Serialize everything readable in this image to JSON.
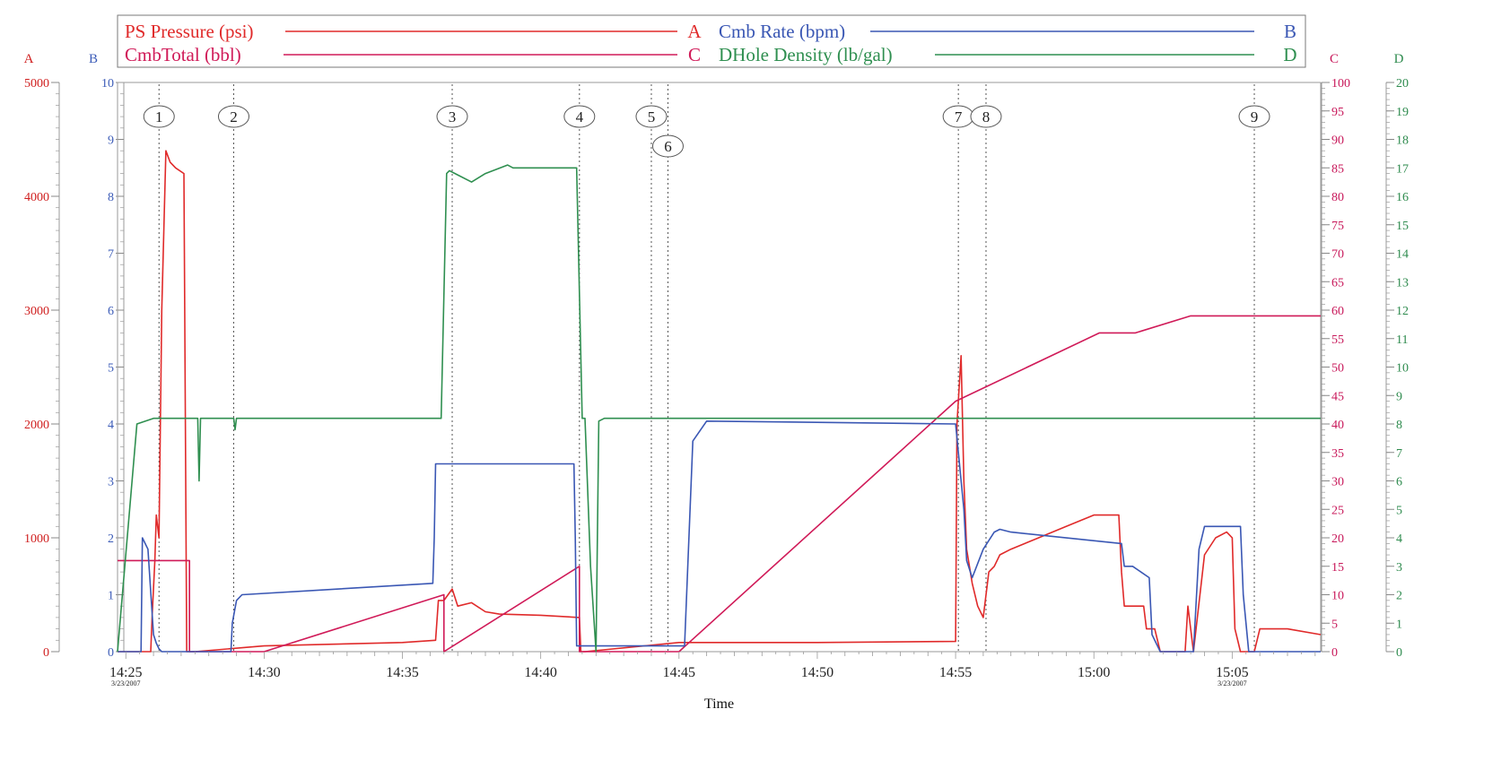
{
  "chart_data": {
    "type": "line",
    "xlabel": "Time",
    "x_ticks": [
      {
        "t": 0,
        "label": "14:25",
        "date": "3/23/2007"
      },
      {
        "t": 5,
        "label": "14:30"
      },
      {
        "t": 10,
        "label": "14:35"
      },
      {
        "t": 15,
        "label": "14:40"
      },
      {
        "t": 20,
        "label": "14:45"
      },
      {
        "t": 25,
        "label": "14:50"
      },
      {
        "t": 30,
        "label": "14:55"
      },
      {
        "t": 35,
        "label": "15:00"
      },
      {
        "t": 40,
        "label": "15:05",
        "date": "3/23/2007"
      }
    ],
    "xlim": [
      -0.3,
      43.2
    ],
    "x_units_note": "minutes after 14:25",
    "axes": [
      {
        "letter": "A",
        "side": "left",
        "color": "#d02020",
        "min": 0,
        "max": 5000,
        "ticks": [
          0,
          1000,
          2000,
          3000,
          4000,
          5000
        ],
        "minor_step": 100
      },
      {
        "letter": "B",
        "side": "left",
        "color": "#3c5cb8",
        "min": 0,
        "max": 10,
        "ticks": [
          0,
          1,
          2,
          3,
          4,
          5,
          6,
          7,
          8,
          9,
          10
        ],
        "minor_step": 0.2
      },
      {
        "letter": "C",
        "side": "right",
        "color": "#c8185a",
        "min": 0,
        "max": 100,
        "ticks": [
          0,
          5,
          10,
          15,
          20,
          25,
          30,
          35,
          40,
          45,
          50,
          55,
          60,
          65,
          70,
          75,
          80,
          85,
          90,
          95,
          100
        ],
        "minor_step": 1
      },
      {
        "letter": "D",
        "side": "right",
        "color": "#2e8b4e",
        "min": 0,
        "max": 20,
        "ticks": [
          0,
          1,
          2,
          3,
          4,
          5,
          6,
          7,
          8,
          9,
          10,
          11,
          12,
          13,
          14,
          15,
          16,
          17,
          18,
          19,
          20
        ],
        "minor_step": 0.2
      }
    ],
    "series": [
      {
        "name": "PS Pressure (psi)",
        "axis": "A",
        "color": "#e02a2a",
        "x": [
          -0.3,
          0.9,
          0.95,
          1.05,
          1.1,
          1.2,
          1.3,
          1.45,
          1.6,
          1.8,
          2.1,
          2.2,
          2.35,
          2.5,
          5,
          10,
          11.2,
          11.3,
          11.5,
          11.8,
          12,
          12.5,
          13,
          13.5,
          15,
          16.4,
          16.45,
          16.6,
          20,
          25,
          30,
          30.05,
          30.2,
          30.3,
          30.4,
          30.6,
          30.8,
          31,
          31.2,
          31.4,
          31.6,
          32,
          33,
          34,
          35,
          35.9,
          36,
          36.1,
          36.8,
          36.9,
          37.2,
          37.4,
          37.6,
          38.3,
          38.4,
          38.6,
          39,
          39.4,
          39.8,
          40,
          40.1,
          40.3,
          40.8,
          41,
          41.3,
          42,
          43.2
        ],
        "y": [
          0,
          0,
          300,
          800,
          1200,
          1000,
          3000,
          4400,
          4300,
          4250,
          4200,
          0,
          0,
          0,
          50,
          80,
          100,
          450,
          450,
          550,
          400,
          430,
          350,
          330,
          320,
          300,
          0,
          0,
          80,
          80,
          90,
          2000,
          2600,
          1500,
          900,
          600,
          400,
          300,
          700,
          750,
          850,
          900,
          1000,
          1100,
          1200,
          1200,
          700,
          400,
          400,
          200,
          200,
          0,
          0,
          0,
          400,
          0,
          850,
          1000,
          1050,
          1000,
          200,
          0,
          0,
          200,
          200,
          200,
          150
        ]
      },
      {
        "name": "CmbTotal (bbl)",
        "axis": "C",
        "color": "#d01a58",
        "x": [
          -0.3,
          2.3,
          2.3,
          5,
          11.5,
          11.5,
          16.4,
          16.4,
          20,
          30,
          35.2,
          36.5,
          38.5,
          43.2
        ],
        "y": [
          16,
          16,
          0,
          0,
          10,
          0,
          15,
          0,
          0,
          44,
          56,
          56,
          59,
          59
        ]
      },
      {
        "name": "Cmb Rate (bpm)",
        "axis": "B",
        "color": "#3a57b4",
        "x": [
          -0.3,
          0.55,
          0.6,
          0.8,
          1.0,
          1.1,
          1.2,
          1.3,
          3.8,
          3.85,
          4.0,
          4.2,
          11.1,
          11.15,
          11.2,
          16.2,
          16.25,
          16.3,
          16.7,
          20.2,
          20.5,
          21,
          30,
          30.3,
          30.4,
          30.6,
          31,
          31.4,
          31.6,
          32,
          36,
          36.1,
          36.4,
          37,
          37.1,
          37.4,
          38.6,
          38.8,
          39,
          40.3,
          40.4,
          40.6,
          43.2
        ],
        "y": [
          0,
          0,
          2,
          1.8,
          0.3,
          0.15,
          0.05,
          0,
          0,
          0.5,
          0.9,
          1.0,
          1.2,
          2.0,
          3.3,
          3.3,
          2.0,
          0.1,
          0.1,
          0.1,
          3.7,
          4.05,
          4.0,
          2.5,
          1.6,
          1.3,
          1.8,
          2.1,
          2.15,
          2.1,
          1.9,
          1.5,
          1.5,
          1.3,
          0.3,
          0,
          0,
          1.8,
          2.2,
          2.2,
          1.0,
          0,
          0
        ]
      },
      {
        "name": "DHole Density (lb/gal)",
        "axis": "D",
        "color": "#2f8f50",
        "x": [
          -0.3,
          0.4,
          1.0,
          2.0,
          2.6,
          2.65,
          2.7,
          2.8,
          3.0,
          3.9,
          3.95,
          4.0,
          11.4,
          11.6,
          11.7,
          12.5,
          13,
          13.8,
          14,
          16.3,
          16.5,
          16.6,
          16.8,
          17.0,
          17.1,
          17.3,
          43.2
        ],
        "y": [
          0,
          8,
          8.2,
          8.2,
          8.2,
          6,
          8.2,
          8.2,
          8.2,
          8.2,
          7.8,
          8.2,
          8.2,
          16.8,
          16.9,
          16.5,
          16.8,
          17.1,
          17.0,
          17.0,
          8.2,
          8.2,
          3,
          0,
          8.1,
          8.2,
          8.2
        ]
      }
    ],
    "events": [
      {
        "label": "1",
        "t": 1.2
      },
      {
        "label": "2",
        "t": 3.9
      },
      {
        "label": "3",
        "t": 11.8
      },
      {
        "label": "4",
        "t": 16.4
      },
      {
        "label": "5",
        "t": 19.0
      },
      {
        "label": "6",
        "t": 19.6
      },
      {
        "label": "7",
        "t": 30.1
      },
      {
        "label": "8",
        "t": 31.1
      },
      {
        "label": "9",
        "t": 40.8
      }
    ],
    "legend": [
      {
        "name": "PS Pressure (psi)",
        "axis_letter": "A",
        "color": "#e02a2a"
      },
      {
        "name": "Cmb Rate (bpm)",
        "axis_letter": "B",
        "color": "#3a57b4"
      },
      {
        "name": "CmbTotal (bbl)",
        "axis_letter": "C",
        "color": "#d01a58"
      },
      {
        "name": "DHole Density (lb/gal)",
        "axis_letter": "D",
        "color": "#2f8f50"
      }
    ],
    "legend_position": "top",
    "grid": false
  }
}
